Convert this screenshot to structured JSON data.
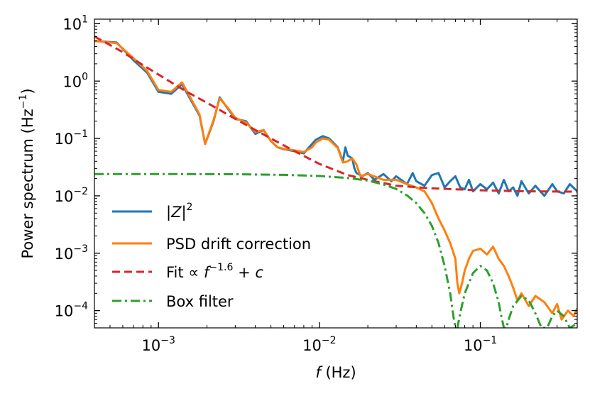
{
  "chart_data": {
    "type": "line",
    "xlabel": {
      "italic": "f",
      "rest": " (Hz)"
    },
    "ylabel": {
      "text": "Power spectrum (Hz",
      "sup": "−1",
      "close": ")"
    },
    "xscale": "log",
    "yscale": "log",
    "xlim": [
      0.0004,
      0.4
    ],
    "ylim": [
      5e-05,
      12
    ],
    "grid": false,
    "legend_position": "lower-left",
    "x_ticks": [
      {
        "value": 0.001,
        "base": "10",
        "exp": "−3"
      },
      {
        "value": 0.01,
        "base": "10",
        "exp": "−2"
      },
      {
        "value": 0.1,
        "base": "10",
        "exp": "−1"
      }
    ],
    "y_ticks": [
      {
        "value": 0.0001,
        "base": "10",
        "exp": "−4"
      },
      {
        "value": 0.001,
        "base": "10",
        "exp": "−3"
      },
      {
        "value": 0.01,
        "base": "10",
        "exp": "−2"
      },
      {
        "value": 0.1,
        "base": "10",
        "exp": "−1"
      },
      {
        "value": 1,
        "base": "10",
        "exp": "0"
      },
      {
        "value": 10,
        "base": "10",
        "exp": "1"
      }
    ],
    "series": [
      {
        "name": "|Z|²",
        "color": "#1f77b4",
        "style": "solid",
        "points": [
          [
            0.0004,
            5.0
          ],
          [
            0.00055,
            4.7
          ],
          [
            0.0007,
            2.3
          ],
          [
            0.00085,
            1.4
          ],
          [
            0.001,
            0.65
          ],
          [
            0.0012,
            0.6
          ],
          [
            0.0014,
            0.88
          ],
          [
            0.0016,
            0.45
          ],
          [
            0.0018,
            0.25
          ],
          [
            0.00195,
            0.08
          ],
          [
            0.0022,
            0.2
          ],
          [
            0.0024,
            0.52
          ],
          [
            0.0027,
            0.33
          ],
          [
            0.003,
            0.22
          ],
          [
            0.0035,
            0.2
          ],
          [
            0.004,
            0.12
          ],
          [
            0.0045,
            0.14
          ],
          [
            0.005,
            0.09
          ],
          [
            0.0055,
            0.07
          ],
          [
            0.006,
            0.065
          ],
          [
            0.007,
            0.06
          ],
          [
            0.008,
            0.055
          ],
          [
            0.009,
            0.08
          ],
          [
            0.0095,
            0.095
          ],
          [
            0.0105,
            0.11
          ],
          [
            0.0115,
            0.1
          ],
          [
            0.013,
            0.07
          ],
          [
            0.014,
            0.04
          ],
          [
            0.0145,
            0.07
          ],
          [
            0.015,
            0.05
          ],
          [
            0.016,
            0.045
          ],
          [
            0.0165,
            0.03
          ],
          [
            0.017,
            0.025
          ],
          [
            0.0185,
            0.022
          ],
          [
            0.02,
            0.025
          ],
          [
            0.022,
            0.019
          ],
          [
            0.025,
            0.024
          ],
          [
            0.028,
            0.018
          ],
          [
            0.03,
            0.022
          ],
          [
            0.035,
            0.016
          ],
          [
            0.038,
            0.025
          ],
          [
            0.04,
            0.018
          ],
          [
            0.045,
            0.015
          ],
          [
            0.05,
            0.023
          ],
          [
            0.055,
            0.025
          ],
          [
            0.06,
            0.014
          ],
          [
            0.065,
            0.018
          ],
          [
            0.07,
            0.022
          ],
          [
            0.075,
            0.014
          ],
          [
            0.08,
            0.013
          ],
          [
            0.085,
            0.019
          ],
          [
            0.09,
            0.012
          ],
          [
            0.1,
            0.016
          ],
          [
            0.11,
            0.013
          ],
          [
            0.12,
            0.017
          ],
          [
            0.13,
            0.011
          ],
          [
            0.14,
            0.019
          ],
          [
            0.15,
            0.012
          ],
          [
            0.16,
            0.014
          ],
          [
            0.17,
            0.01
          ],
          [
            0.18,
            0.018
          ],
          [
            0.2,
            0.011
          ],
          [
            0.22,
            0.015
          ],
          [
            0.25,
            0.01
          ],
          [
            0.28,
            0.016
          ],
          [
            0.3,
            0.012
          ],
          [
            0.33,
            0.011
          ],
          [
            0.36,
            0.016
          ],
          [
            0.4,
            0.012
          ]
        ]
      },
      {
        "name": "PSD drift correction",
        "color": "#ff7f0e",
        "style": "solid",
        "points": [
          [
            0.0004,
            5.0
          ],
          [
            0.00055,
            4.6
          ],
          [
            0.0007,
            2.5
          ],
          [
            0.00085,
            1.5
          ],
          [
            0.001,
            0.7
          ],
          [
            0.0012,
            0.65
          ],
          [
            0.0014,
            0.95
          ],
          [
            0.0016,
            0.48
          ],
          [
            0.0018,
            0.26
          ],
          [
            0.00195,
            0.08
          ],
          [
            0.0022,
            0.21
          ],
          [
            0.0024,
            0.5
          ],
          [
            0.0027,
            0.34
          ],
          [
            0.003,
            0.23
          ],
          [
            0.0035,
            0.19
          ],
          [
            0.004,
            0.13
          ],
          [
            0.0045,
            0.14
          ],
          [
            0.005,
            0.09
          ],
          [
            0.0055,
            0.07
          ],
          [
            0.006,
            0.066
          ],
          [
            0.007,
            0.062
          ],
          [
            0.008,
            0.058
          ],
          [
            0.009,
            0.07
          ],
          [
            0.0095,
            0.085
          ],
          [
            0.0105,
            0.1
          ],
          [
            0.0115,
            0.095
          ],
          [
            0.013,
            0.068
          ],
          [
            0.014,
            0.038
          ],
          [
            0.015,
            0.04
          ],
          [
            0.016,
            0.045
          ],
          [
            0.017,
            0.035
          ],
          [
            0.018,
            0.022
          ],
          [
            0.02,
            0.024
          ],
          [
            0.025,
            0.019
          ],
          [
            0.03,
            0.019
          ],
          [
            0.035,
            0.016
          ],
          [
            0.04,
            0.014
          ],
          [
            0.045,
            0.012
          ],
          [
            0.05,
            0.0075
          ],
          [
            0.055,
            0.004
          ],
          [
            0.06,
            0.0025
          ],
          [
            0.065,
            0.0015
          ],
          [
            0.07,
            0.0008
          ],
          [
            0.072,
            0.0003
          ],
          [
            0.074,
            0.0002
          ],
          [
            0.077,
            0.0003
          ],
          [
            0.08,
            0.0005
          ],
          [
            0.085,
            0.0008
          ],
          [
            0.09,
            0.0011
          ],
          [
            0.1,
            0.0012
          ],
          [
            0.11,
            0.00095
          ],
          [
            0.12,
            0.0013
          ],
          [
            0.13,
            0.0008
          ],
          [
            0.14,
            0.0006
          ],
          [
            0.15,
            0.0004
          ],
          [
            0.16,
            0.00025
          ],
          [
            0.17,
            0.00015
          ],
          [
            0.18,
            0.0002
          ],
          [
            0.2,
            0.00012
          ],
          [
            0.22,
            0.00018
          ],
          [
            0.25,
            0.00014
          ],
          [
            0.28,
            9e-05
          ],
          [
            0.3,
            0.00013
          ],
          [
            0.32,
            7e-05
          ],
          [
            0.35,
            0.0001
          ],
          [
            0.38,
            8e-05
          ],
          [
            0.4,
            0.00011
          ]
        ]
      },
      {
        "name": "Fit ∝ f⁻¹·⁶ + c",
        "color": "#d62728",
        "style": "dashed",
        "points": [
          [
            0.0004,
            6.0
          ],
          [
            0.0006,
            3.2
          ],
          [
            0.0008,
            1.9
          ],
          [
            0.001,
            1.3
          ],
          [
            0.0015,
            0.65
          ],
          [
            0.002,
            0.42
          ],
          [
            0.003,
            0.22
          ],
          [
            0.004,
            0.14
          ],
          [
            0.005,
            0.1
          ],
          [
            0.007,
            0.06
          ],
          [
            0.01,
            0.036
          ],
          [
            0.015,
            0.023
          ],
          [
            0.02,
            0.019
          ],
          [
            0.03,
            0.015
          ],
          [
            0.05,
            0.0135
          ],
          [
            0.1,
            0.0125
          ],
          [
            0.2,
            0.012
          ],
          [
            0.4,
            0.0118
          ]
        ]
      },
      {
        "name": "Box filter",
        "color": "#2ca02c",
        "style": "dashdot",
        "points": [
          [
            0.0004,
            0.024
          ],
          [
            0.001,
            0.024
          ],
          [
            0.003,
            0.0238
          ],
          [
            0.006,
            0.0232
          ],
          [
            0.01,
            0.0222
          ],
          [
            0.015,
            0.0205
          ],
          [
            0.02,
            0.0185
          ],
          [
            0.025,
            0.0158
          ],
          [
            0.03,
            0.0132
          ],
          [
            0.035,
            0.0102
          ],
          [
            0.04,
            0.0075
          ],
          [
            0.045,
            0.005
          ],
          [
            0.05,
            0.003
          ],
          [
            0.055,
            0.0015
          ],
          [
            0.06,
            0.0006
          ],
          [
            0.065,
            0.0002
          ],
          [
            0.068,
            8e-05
          ],
          [
            0.07,
            5e-05
          ],
          [
            0.072,
            5e-05
          ],
          [
            0.075,
            9e-05
          ],
          [
            0.08,
            0.0002
          ],
          [
            0.09,
            0.00045
          ],
          [
            0.1,
            0.0006
          ],
          [
            0.11,
            0.0005
          ],
          [
            0.12,
            0.0003
          ],
          [
            0.13,
            0.00014
          ],
          [
            0.135,
            8e-05
          ],
          [
            0.14,
            5e-05
          ],
          [
            0.145,
            5e-05
          ],
          [
            0.15,
            7e-05
          ],
          [
            0.16,
            0.00012
          ],
          [
            0.18,
            0.00018
          ],
          [
            0.2,
            0.00015
          ],
          [
            0.22,
            9e-05
          ],
          [
            0.24,
            5e-05
          ],
          [
            0.26,
            5e-05
          ],
          [
            0.28,
            8e-05
          ],
          [
            0.3,
            0.0001
          ],
          [
            0.33,
            8e-05
          ],
          [
            0.36,
            5e-05
          ],
          [
            0.4,
            6e-05
          ]
        ]
      }
    ],
    "legend": [
      {
        "series": 0,
        "parts": [
          {
            "t": "|",
            "i": false
          },
          {
            "t": "Z",
            "i": true
          },
          {
            "t": "|",
            "i": false
          }
        ],
        "sup": "2",
        "tail": []
      },
      {
        "series": 1,
        "parts": [
          {
            "t": "PSD drift correction",
            "i": false
          }
        ],
        "sup": "",
        "tail": []
      },
      {
        "series": 2,
        "parts": [
          {
            "t": "Fit ∝ ",
            "i": false
          },
          {
            "t": "f",
            "i": true
          }
        ],
        "sup": "−1.6",
        "tail": [
          {
            "t": " + ",
            "i": false
          },
          {
            "t": "c",
            "i": true
          }
        ]
      },
      {
        "series": 3,
        "parts": [
          {
            "t": "Box filter",
            "i": false
          }
        ],
        "sup": "",
        "tail": []
      }
    ]
  }
}
